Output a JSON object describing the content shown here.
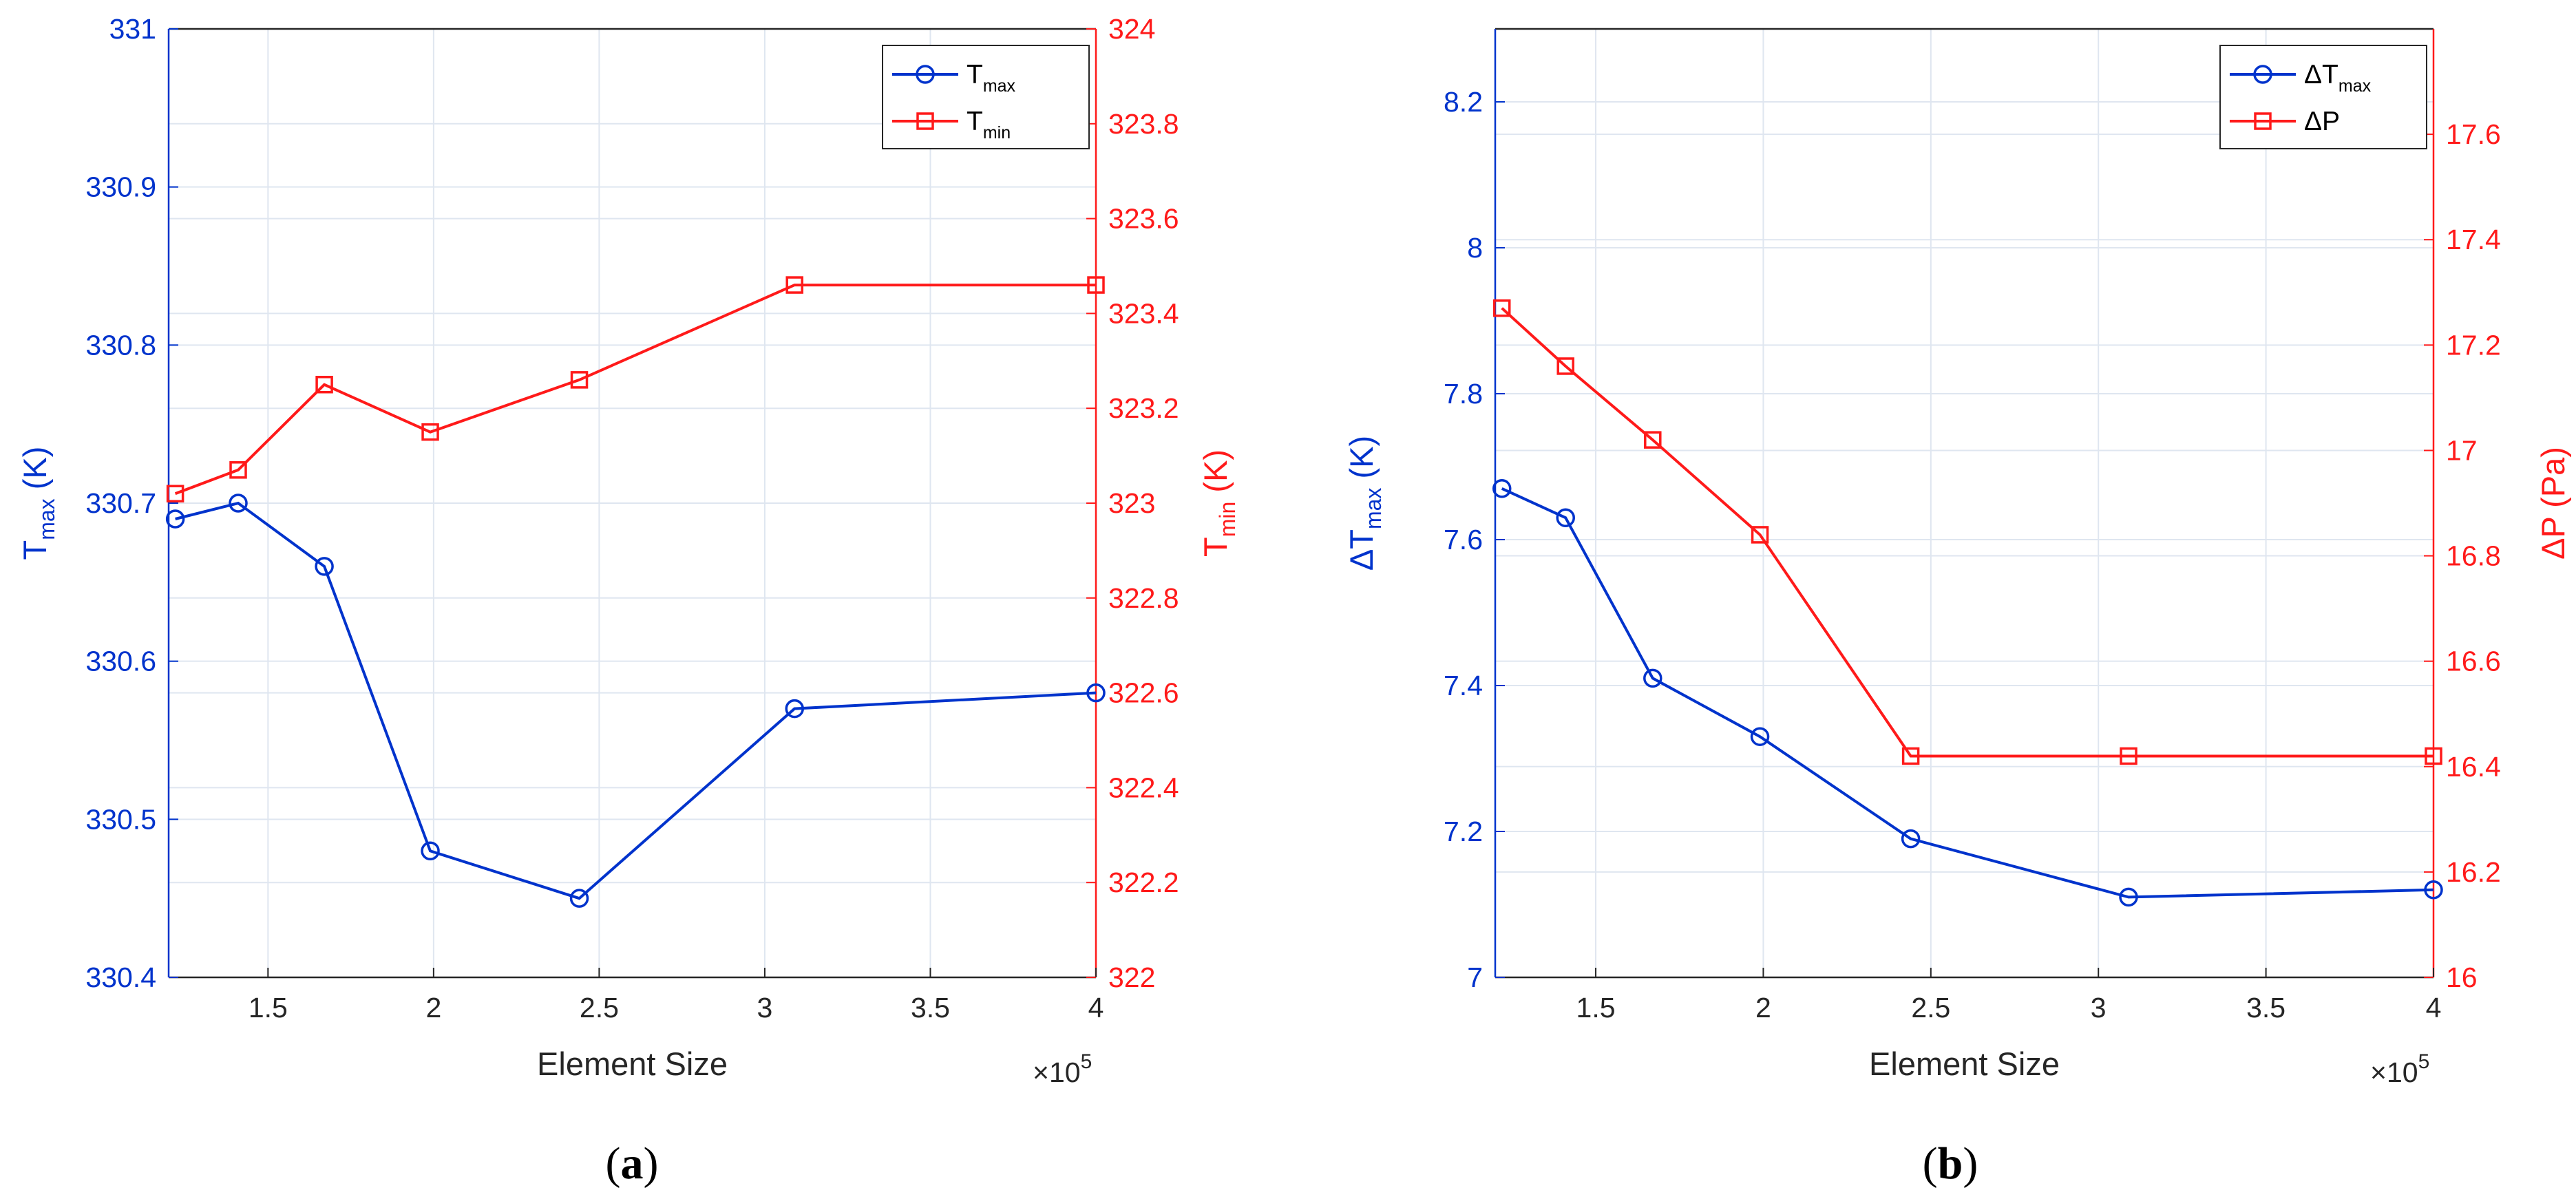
{
  "chart_data": [
    {
      "type": "line",
      "caption": {
        "open": "(",
        "letter": "a",
        "close": ")"
      },
      "xlabel": "Element Size",
      "x_multiplier": "×10",
      "x_exponent": "5",
      "xlim": [
        1.2,
        4.0
      ],
      "xticks": [
        1.5,
        2,
        2.5,
        3,
        3.5,
        4
      ],
      "xtick_labels": [
        "1.5",
        "2",
        "2.5",
        "3",
        "3.5",
        "4"
      ],
      "grid": true,
      "legend_position": "top-right",
      "left_axis": {
        "label_main": "T",
        "label_sub": "max",
        "label_unit": " (K)",
        "ylim": [
          330.4,
          331.0
        ],
        "ticks": [
          330.4,
          330.5,
          330.6,
          330.7,
          330.8,
          330.9,
          331.0
        ],
        "tick_labels": [
          "330.4",
          "330.5",
          "330.6",
          "330.7",
          "330.8",
          "330.9",
          "331"
        ],
        "color": "#0033cc"
      },
      "right_axis": {
        "label_main": "T",
        "label_sub": "min",
        "label_unit": " (K)",
        "ylim": [
          322.0,
          324.0
        ],
        "ticks": [
          322.0,
          322.2,
          322.4,
          322.6,
          322.8,
          323.0,
          323.2,
          323.4,
          323.6,
          323.8,
          324.0
        ],
        "tick_labels": [
          "322",
          "322.2",
          "322.4",
          "322.6",
          "322.8",
          "323",
          "323.2",
          "323.4",
          "323.6",
          "323.8",
          "324"
        ],
        "color": "#ff1a1a"
      },
      "series": [
        {
          "name_main": "T",
          "name_sub": "max",
          "axis": "left",
          "marker": "circle",
          "color": "#0033cc",
          "x": [
            1.22,
            1.41,
            1.67,
            1.99,
            2.44,
            3.09,
            4.0
          ],
          "y": [
            330.69,
            330.7,
            330.66,
            330.48,
            330.45,
            330.57,
            330.58
          ]
        },
        {
          "name_main": "T",
          "name_sub": "min",
          "axis": "right",
          "marker": "square",
          "color": "#ff1a1a",
          "x": [
            1.22,
            1.41,
            1.67,
            1.99,
            2.44,
            3.09,
            4.0
          ],
          "y": [
            323.02,
            323.07,
            323.25,
            323.15,
            323.26,
            323.46,
            323.46
          ]
        }
      ]
    },
    {
      "type": "line",
      "caption": {
        "open": "(",
        "letter": "b",
        "close": ")"
      },
      "xlabel": "Element Size",
      "x_multiplier": "×10",
      "x_exponent": "5",
      "xlim": [
        1.2,
        4.0
      ],
      "xticks": [
        1.5,
        2,
        2.5,
        3,
        3.5,
        4
      ],
      "xtick_labels": [
        "1.5",
        "2",
        "2.5",
        "3",
        "3.5",
        "4"
      ],
      "grid": true,
      "legend_position": "top-right",
      "left_axis": {
        "label_main": "ΔT",
        "label_sub": "max",
        "label_unit": " (K)",
        "ylim": [
          7.0,
          8.3
        ],
        "ticks": [
          7.0,
          7.2,
          7.4,
          7.6,
          7.8,
          8.0,
          8.2
        ],
        "tick_labels": [
          "7",
          "7.2",
          "7.4",
          "7.6",
          "7.8",
          "8",
          "8.2"
        ],
        "color": "#0033cc"
      },
      "right_axis": {
        "label_main": "ΔP",
        "label_sub": "",
        "label_unit": " (Pa)",
        "ylim": [
          16.0,
          17.8
        ],
        "ticks": [
          16.0,
          16.2,
          16.4,
          16.6,
          16.8,
          17.0,
          17.2,
          17.4,
          17.6
        ],
        "tick_labels": [
          "16",
          "16.2",
          "16.4",
          "16.6",
          "16.8",
          "17",
          "17.2",
          "17.4",
          "17.6"
        ],
        "color": "#ff1a1a"
      },
      "series": [
        {
          "name_main": "ΔT",
          "name_sub": "max",
          "axis": "left",
          "marker": "circle",
          "color": "#0033cc",
          "x": [
            1.22,
            1.41,
            1.67,
            1.99,
            2.44,
            3.09,
            4.0
          ],
          "y": [
            7.67,
            7.63,
            7.41,
            7.33,
            7.19,
            7.11,
            7.12
          ]
        },
        {
          "name_main": "ΔP",
          "name_sub": "",
          "axis": "right",
          "marker": "square",
          "color": "#ff1a1a",
          "x": [
            1.22,
            1.41,
            1.67,
            1.99,
            2.44,
            3.09,
            4.0
          ],
          "y": [
            17.27,
            17.16,
            17.02,
            16.84,
            16.42,
            16.42,
            16.42
          ]
        }
      ]
    }
  ]
}
